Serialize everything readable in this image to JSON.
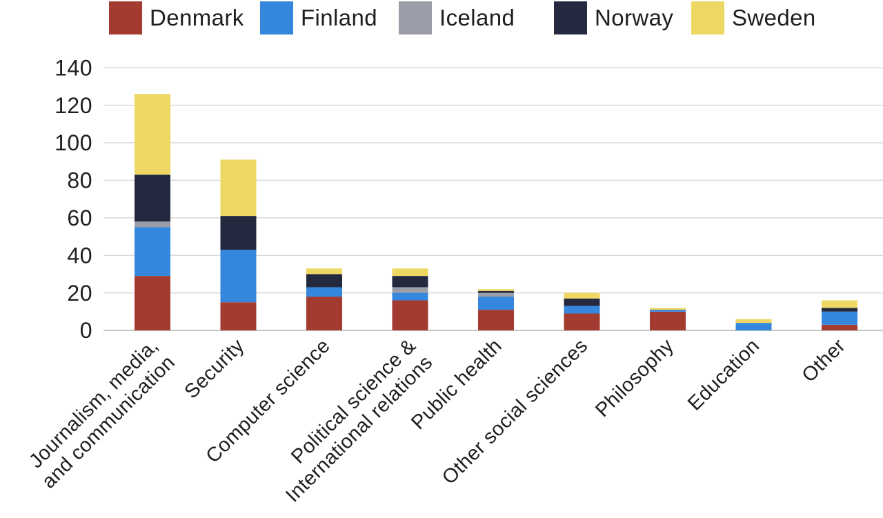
{
  "chart_data": {
    "type": "bar",
    "stacked": true,
    "title": "",
    "xlabel": "",
    "ylabel": "",
    "categories": [
      "Journalism, media, and communication",
      "Security",
      "Computer science",
      "Political science & International relations",
      "Public health",
      "Other social sciences",
      "Philosophy",
      "Education",
      "Other"
    ],
    "category_label_lines": [
      [
        "Journalism, media,",
        "and communication"
      ],
      [
        "Security"
      ],
      [
        "Computer science"
      ],
      [
        "Political science &",
        "International relations"
      ],
      [
        "Public health"
      ],
      [
        "Other social sciences"
      ],
      [
        "Philosophy"
      ],
      [
        "Education"
      ],
      [
        "Other"
      ]
    ],
    "series": [
      {
        "name": "Denmark",
        "color": "#A43B31",
        "values": [
          29,
          15,
          18,
          16,
          11,
          9,
          10,
          0,
          3
        ]
      },
      {
        "name": "Finland",
        "color": "#3487DC",
        "values": [
          26,
          28,
          5,
          4,
          7,
          4,
          1,
          4,
          7
        ]
      },
      {
        "name": "Iceland",
        "color": "#9B9EA8",
        "values": [
          3,
          0,
          0,
          3,
          2,
          0,
          0,
          0,
          0
        ]
      },
      {
        "name": "Norway",
        "color": "#252940",
        "values": [
          25,
          18,
          7,
          6,
          1,
          4,
          0,
          0,
          2
        ]
      },
      {
        "name": "Sweden",
        "color": "#EFD763",
        "values": [
          43,
          30,
          3,
          4,
          1,
          3,
          1,
          2,
          4
        ]
      }
    ],
    "stack_totals": [
      126,
      91,
      33,
      33,
      22,
      20,
      12,
      6,
      16
    ],
    "ylim": [
      0,
      140
    ],
    "yticks": [
      0,
      20,
      40,
      60,
      80,
      100,
      120,
      140
    ],
    "grid": true,
    "legend_position": "top"
  },
  "colors": {
    "background": "#FFFFFF",
    "text": "#1E1E1E",
    "gridline": "#D9D9D9",
    "baseline": "#C6C6C6"
  }
}
